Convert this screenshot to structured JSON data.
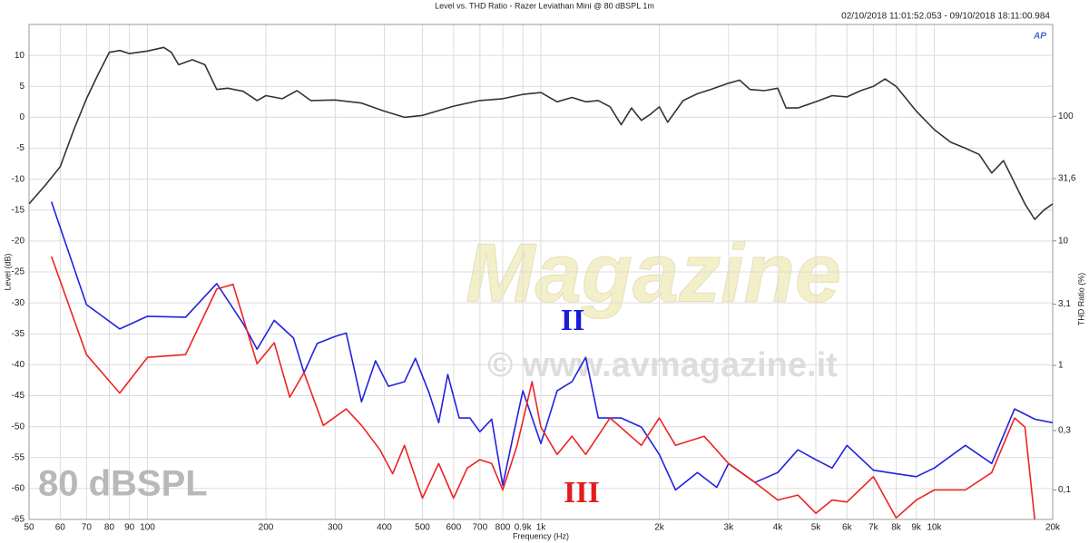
{
  "chart_data": {
    "type": "line",
    "title": "Level vs. THD Ratio - Razer Leviathan Mini @ 80 dBSPL 1m",
    "subtitle": "02/10/2018 11:01:52.053 - 09/10/2018 18:11:00.984",
    "xlabel": "Frequency (Hz)",
    "ylabel": "Level (dB)",
    "y2label": "THD Ratio (%)",
    "xscale": "log",
    "y2scale": "log",
    "grid": true,
    "xlim": [
      50,
      20000
    ],
    "ylim": [
      -65,
      15
    ],
    "y2lim": [
      0.058,
      546
    ],
    "xticks": [
      50,
      60,
      70,
      80,
      90,
      100,
      200,
      300,
      400,
      500,
      600,
      700,
      800,
      {
        "value": 900,
        "label": "0.9k"
      },
      {
        "value": 1000,
        "label": "1k"
      },
      {
        "value": 2000,
        "label": "2k"
      },
      {
        "value": 3000,
        "label": "3k"
      },
      {
        "value": 4000,
        "label": "4k"
      },
      {
        "value": 5000,
        "label": "5k"
      },
      {
        "value": 6000,
        "label": "6k"
      },
      {
        "value": 7000,
        "label": "7k"
      },
      {
        "value": 8000,
        "label": "8k"
      },
      {
        "value": 9000,
        "label": "9k"
      },
      {
        "value": 10000,
        "label": "10k"
      },
      {
        "value": 20000,
        "label": "20k"
      }
    ],
    "yticks": [
      10,
      5,
      0,
      -5,
      -10,
      -15,
      -20,
      -25,
      -30,
      -35,
      -40,
      -45,
      -50,
      -55,
      -60,
      -65
    ],
    "y2ticks": [
      100,
      {
        "value": 31.6,
        "label": "31,6"
      },
      10,
      {
        "value": 3.1,
        "label": "3,1"
      },
      1,
      {
        "value": 0.3,
        "label": "0,3"
      },
      {
        "value": 0.1,
        "label": "0,1"
      }
    ],
    "series": [
      {
        "color": "#333333",
        "axis": "y",
        "x": [
          50,
          55,
          60,
          65,
          70,
          75,
          80,
          85,
          90,
          100,
          110,
          115,
          120,
          130,
          140,
          150,
          160,
          175,
          190,
          200,
          220,
          240,
          260,
          300,
          350,
          400,
          450,
          500,
          600,
          700,
          800,
          900,
          1000,
          1100,
          1200,
          1300,
          1400,
          1500,
          1600,
          1700,
          1800,
          1900,
          2000,
          2100,
          2300,
          2500,
          2700,
          3000,
          3200,
          3400,
          3700,
          4000,
          4200,
          4500,
          5000,
          5500,
          6000,
          6500,
          7000,
          7500,
          8000,
          9000,
          10000,
          11000,
          12000,
          13000,
          14000,
          15000,
          17000,
          18000,
          19000,
          20000
        ],
        "values": [
          -14,
          -11,
          -8,
          -2,
          3,
          7,
          10.5,
          10.8,
          10.3,
          10.7,
          11.3,
          10.5,
          8.5,
          9.3,
          8.5,
          4.5,
          4.7,
          4.2,
          2.7,
          3.5,
          3,
          4.3,
          2.7,
          2.8,
          2.3,
          1,
          0,
          0.3,
          1.8,
          2.7,
          3,
          3.7,
          4,
          2.5,
          3.2,
          2.5,
          2.7,
          1.7,
          -1.2,
          1.5,
          -0.5,
          0.5,
          1.7,
          -0.8,
          2.7,
          3.8,
          4.5,
          5.5,
          6,
          4.5,
          4.3,
          4.7,
          1.5,
          1.5,
          2.5,
          3.5,
          3.3,
          4.3,
          5,
          6.2,
          5,
          1,
          -2,
          -4,
          -5,
          -6,
          -9,
          -7,
          -14,
          -16.5,
          -15,
          -14
        ]
      },
      {
        "color": "#2222dd",
        "axis": "y2",
        "x": [
          57,
          70,
          85,
          100,
          125,
          150,
          175,
          190,
          210,
          235,
          250,
          270,
          300,
          320,
          350,
          380,
          410,
          450,
          480,
          520,
          550,
          580,
          620,
          660,
          700,
          750,
          800,
          850,
          900,
          1000,
          1100,
          1200,
          1300,
          1400,
          1600,
          1800,
          2000,
          2200,
          2500,
          2800,
          3000,
          3500,
          4000,
          4500,
          5000,
          5500,
          6000,
          7000,
          8000,
          9000,
          10000,
          12000,
          14000,
          16000,
          18000,
          20000
        ],
        "values": [
          20.6,
          3.08,
          1.96,
          2.48,
          2.44,
          4.54,
          2.17,
          1.35,
          2.3,
          1.66,
          0.875,
          1.5,
          1.71,
          1.82,
          0.51,
          1.09,
          0.68,
          0.74,
          1.14,
          0.6,
          0.347,
          0.845,
          0.378,
          0.378,
          0.293,
          0.37,
          0.109,
          0.27,
          0.625,
          0.236,
          0.625,
          0.74,
          1.16,
          0.378,
          0.378,
          0.32,
          0.193,
          0.1,
          0.138,
          0.105,
          0.163,
          0.115,
          0.138,
          0.21,
          0.175,
          0.15,
          0.228,
          0.144,
          0.135,
          0.128,
          0.15,
          0.228,
          0.163,
          0.447,
          0.37,
          0.347
        ]
      },
      {
        "color": "#ee2222",
        "axis": "y2",
        "x": [
          57,
          70,
          85,
          100,
          125,
          150,
          165,
          190,
          210,
          230,
          250,
          280,
          320,
          350,
          390,
          420,
          450,
          500,
          550,
          600,
          650,
          700,
          750,
          800,
          870,
          950,
          1000,
          1100,
          1200,
          1300,
          1500,
          1800,
          2000,
          2200,
          2600,
          3000,
          3500,
          4000,
          4500,
          5000,
          5500,
          6000,
          7000,
          8000,
          9000,
          10000,
          12000,
          14000,
          16000,
          17000,
          18000
        ],
        "values": [
          7.5,
          1.22,
          0.6,
          1.16,
          1.22,
          4.1,
          4.47,
          1.03,
          1.52,
          0.556,
          0.875,
          0.33,
          0.447,
          0.33,
          0.21,
          0.135,
          0.228,
          0.086,
          0.163,
          0.086,
          0.15,
          0.175,
          0.163,
          0.1,
          0.228,
          0.74,
          0.32,
          0.193,
          0.27,
          0.193,
          0.378,
          0.228,
          0.378,
          0.228,
          0.27,
          0.163,
          0.115,
          0.083,
          0.091,
          0.065,
          0.083,
          0.08,
          0.128,
          0.0597,
          0.083,
          0.1,
          0.1,
          0.138,
          0.378,
          0.32,
          0.058
        ]
      }
    ],
    "annotations": [
      {
        "text": "Magazine",
        "color": "#f3efc8"
      },
      {
        "text": "© www.avmagazine.it",
        "color": "#dddddd"
      },
      {
        "text": "II",
        "color": "#1a1adc"
      },
      {
        "text": "III",
        "color": "#e21c1c"
      },
      {
        "text": "80 dBSPL",
        "color": "#b8b8b8"
      },
      {
        "text": "AP",
        "color": "#3a6fc4"
      }
    ]
  }
}
